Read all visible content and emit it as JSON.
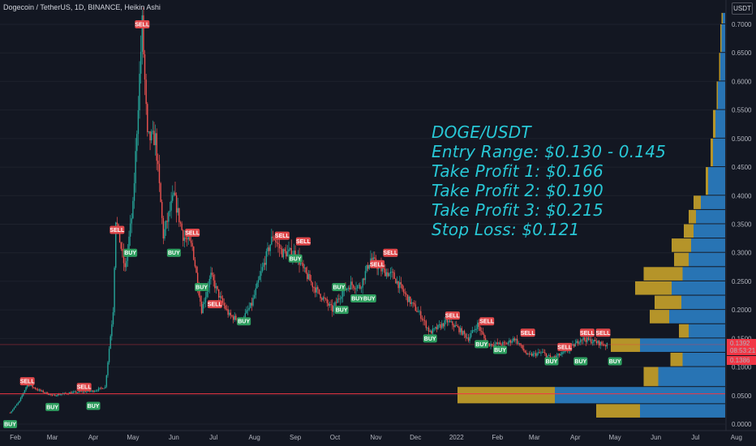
{
  "header": {
    "ticker": "Dogecoin / TetherUS, 1D, BINANCE, Heikin Ashi",
    "unit": "USDT"
  },
  "annotation": {
    "lines": [
      "DOGE/USDT",
      "Entry Range: $0.130 - 0.145",
      "Take Profit 1: $0.166",
      "Take Profit 2: $0.190",
      "Take Profit 3: $0.215",
      "Stop Loss: $0.121"
    ],
    "color": "#28c8d6"
  },
  "colors": {
    "background": "#131722",
    "up": "#26a69a",
    "down": "#ef5350",
    "horizontal_line": "#f23645",
    "volume_profile_blue": "#2b7ec4",
    "volume_profile_gold": "#c8a22a"
  },
  "chart_data": {
    "type": "candlestick",
    "title": "Dogecoin / TetherUS, 1D, BINANCE, Heikin Ashi",
    "ylim": [
      -0.01,
      0.72
    ],
    "y_ticks": [
      "0.7000",
      "0.6500",
      "0.6000",
      "0.5500",
      "0.5000",
      "0.4500",
      "0.4000",
      "0.3500",
      "0.3000",
      "0.2500",
      "0.2000",
      "0.1500",
      "0.1000",
      "0.0500",
      "0.0000"
    ],
    "x_ticks": [
      "Feb",
      "Mar",
      "Apr",
      "May",
      "Jun",
      "Jul",
      "Aug",
      "Sep",
      "Oct",
      "Nov",
      "Dec",
      "2022",
      "Feb",
      "Mar",
      "Apr",
      "May",
      "Jun",
      "Jul",
      "Aug"
    ],
    "price_path": [
      [
        "2021-01-28",
        0.02
      ],
      [
        "2021-02-04",
        0.04
      ],
      [
        "2021-02-10",
        0.07
      ],
      [
        "2021-02-18",
        0.06
      ],
      [
        "2021-03-01",
        0.05
      ],
      [
        "2021-03-15",
        0.055
      ],
      [
        "2021-04-01",
        0.058
      ],
      [
        "2021-04-10",
        0.065
      ],
      [
        "2021-04-16",
        0.2
      ],
      [
        "2021-04-18",
        0.36
      ],
      [
        "2021-04-25",
        0.27
      ],
      [
        "2021-05-01",
        0.38
      ],
      [
        "2021-05-08",
        0.7
      ],
      [
        "2021-05-12",
        0.5
      ],
      [
        "2021-05-18",
        0.5
      ],
      [
        "2021-05-24",
        0.33
      ],
      [
        "2021-06-01",
        0.4
      ],
      [
        "2021-06-08",
        0.33
      ],
      [
        "2021-06-15",
        0.31
      ],
      [
        "2021-06-22",
        0.2
      ],
      [
        "2021-06-29",
        0.26
      ],
      [
        "2021-07-06",
        0.22
      ],
      [
        "2021-07-13",
        0.19
      ],
      [
        "2021-07-22",
        0.18
      ],
      [
        "2021-07-30",
        0.21
      ],
      [
        "2021-08-08",
        0.28
      ],
      [
        "2021-08-15",
        0.33
      ],
      [
        "2021-08-22",
        0.3
      ],
      [
        "2021-09-01",
        0.3
      ],
      [
        "2021-09-07",
        0.27
      ],
      [
        "2021-09-15",
        0.24
      ],
      [
        "2021-09-22",
        0.22
      ],
      [
        "2021-09-29",
        0.2
      ],
      [
        "2021-10-06",
        0.23
      ],
      [
        "2021-10-13",
        0.245
      ],
      [
        "2021-10-20",
        0.24
      ],
      [
        "2021-10-28",
        0.29
      ],
      [
        "2021-11-05",
        0.27
      ],
      [
        "2021-11-14",
        0.26
      ],
      [
        "2021-11-25",
        0.22
      ],
      [
        "2021-12-05",
        0.19
      ],
      [
        "2021-12-12",
        0.16
      ],
      [
        "2021-12-25",
        0.18
      ],
      [
        "2022-01-01",
        0.17
      ],
      [
        "2022-01-10",
        0.15
      ],
      [
        "2022-01-17",
        0.175
      ],
      [
        "2022-01-24",
        0.14
      ],
      [
        "2022-02-07",
        0.14
      ],
      [
        "2022-02-14",
        0.15
      ],
      [
        "2022-02-24",
        0.12
      ],
      [
        "2022-03-07",
        0.125
      ],
      [
        "2022-03-14",
        0.115
      ],
      [
        "2022-03-24",
        0.125
      ],
      [
        "2022-04-01",
        0.14
      ],
      [
        "2022-04-05",
        0.15
      ],
      [
        "2022-04-14",
        0.145
      ],
      [
        "2022-04-25",
        0.138
      ]
    ],
    "signals": [
      {
        "label": "BUY",
        "date": "2021-01-28",
        "price": 0.0
      },
      {
        "label": "SELL",
        "date": "2021-02-10",
        "price": 0.075
      },
      {
        "label": "BUY",
        "date": "2021-03-01",
        "price": 0.03
      },
      {
        "label": "SELL",
        "date": "2021-03-25",
        "price": 0.065
      },
      {
        "label": "BUY",
        "date": "2021-04-01",
        "price": 0.032
      },
      {
        "label": "SELL",
        "date": "2021-05-08",
        "price": 0.7
      },
      {
        "label": "SELL",
        "date": "2021-04-19",
        "price": 0.34
      },
      {
        "label": "BUY",
        "date": "2021-04-29",
        "price": 0.3
      },
      {
        "label": "BUY",
        "date": "2021-06-01",
        "price": 0.3
      },
      {
        "label": "SELL",
        "date": "2021-06-15",
        "price": 0.335
      },
      {
        "label": "BUY",
        "date": "2021-06-22",
        "price": 0.24
      },
      {
        "label": "SELL",
        "date": "2021-07-02",
        "price": 0.21
      },
      {
        "label": "BUY",
        "date": "2021-07-24",
        "price": 0.18
      },
      {
        "label": "SELL",
        "date": "2021-08-22",
        "price": 0.33
      },
      {
        "label": "BUY",
        "date": "2021-09-01",
        "price": 0.29
      },
      {
        "label": "SELL",
        "date": "2021-09-07",
        "price": 0.32
      },
      {
        "label": "BUY",
        "date": "2021-10-04",
        "price": 0.24
      },
      {
        "label": "BUY",
        "date": "2021-10-06",
        "price": 0.2
      },
      {
        "label": "BUY",
        "date": "2021-10-18",
        "price": 0.22
      },
      {
        "label": "BUY",
        "date": "2021-10-27",
        "price": 0.22
      },
      {
        "label": "SELL",
        "date": "2021-11-02",
        "price": 0.28
      },
      {
        "label": "SELL",
        "date": "2021-11-12",
        "price": 0.3
      },
      {
        "label": "BUY",
        "date": "2021-12-12",
        "price": 0.15
      },
      {
        "label": "SELL",
        "date": "2021-12-29",
        "price": 0.19
      },
      {
        "label": "BUY",
        "date": "2022-01-20",
        "price": 0.14
      },
      {
        "label": "SELL",
        "date": "2022-01-24",
        "price": 0.18
      },
      {
        "label": "BUY",
        "date": "2022-02-03",
        "price": 0.13
      },
      {
        "label": "SELL",
        "date": "2022-02-24",
        "price": 0.16
      },
      {
        "label": "BUY",
        "date": "2022-03-14",
        "price": 0.11
      },
      {
        "label": "SELL",
        "date": "2022-03-24",
        "price": 0.135
      },
      {
        "label": "SELL",
        "date": "2022-04-10",
        "price": 0.16
      },
      {
        "label": "BUY",
        "date": "2022-04-05",
        "price": 0.11
      },
      {
        "label": "SELL",
        "date": "2022-04-22",
        "price": 0.16
      },
      {
        "label": "BUY",
        "date": "2022-05-01",
        "price": 0.11
      }
    ],
    "horizontal_lines": [
      {
        "price": 0.053,
        "color": "#f23645"
      },
      {
        "price": 0.1392,
        "color": "#f23645"
      }
    ],
    "price_labels": [
      {
        "value": "0.1392",
        "time": "08:53:21",
        "color": "#f23645"
      },
      {
        "value": "0.1386",
        "color": "#f23645"
      }
    ],
    "volume_profile": [
      {
        "low": 0.0,
        "high": 0.01,
        "blue": 0,
        "gold": 0
      },
      {
        "low": 0.01,
        "high": 0.035,
        "blue": 70,
        "gold": 36
      },
      {
        "low": 0.035,
        "high": 0.065,
        "blue": 140,
        "gold": 80
      },
      {
        "low": 0.065,
        "high": 0.1,
        "blue": 55,
        "gold": 12
      },
      {
        "low": 0.1,
        "high": 0.125,
        "blue": 35,
        "gold": 10
      },
      {
        "low": 0.125,
        "high": 0.15,
        "blue": 70,
        "gold": 24
      },
      {
        "low": 0.15,
        "high": 0.175,
        "blue": 30,
        "gold": 8
      },
      {
        "low": 0.175,
        "high": 0.2,
        "blue": 46,
        "gold": 16
      },
      {
        "low": 0.2,
        "high": 0.225,
        "blue": 36,
        "gold": 22
      },
      {
        "low": 0.225,
        "high": 0.25,
        "blue": 44,
        "gold": 30
      },
      {
        "low": 0.25,
        "high": 0.275,
        "blue": 35,
        "gold": 32
      },
      {
        "low": 0.275,
        "high": 0.3,
        "blue": 30,
        "gold": 12
      },
      {
        "low": 0.3,
        "high": 0.325,
        "blue": 28,
        "gold": 16
      },
      {
        "low": 0.325,
        "high": 0.35,
        "blue": 26,
        "gold": 8
      },
      {
        "low": 0.35,
        "high": 0.375,
        "blue": 24,
        "gold": 6
      },
      {
        "low": 0.375,
        "high": 0.4,
        "blue": 20,
        "gold": 6
      },
      {
        "low": 0.4,
        "high": 0.45,
        "blue": 14,
        "gold": 2
      },
      {
        "low": 0.45,
        "high": 0.5,
        "blue": 10,
        "gold": 2
      },
      {
        "low": 0.5,
        "high": 0.55,
        "blue": 8,
        "gold": 2
      },
      {
        "low": 0.55,
        "high": 0.6,
        "blue": 6,
        "gold": 1
      },
      {
        "low": 0.6,
        "high": 0.65,
        "blue": 4,
        "gold": 1
      },
      {
        "low": 0.65,
        "high": 0.7,
        "blue": 3,
        "gold": 1
      },
      {
        "low": 0.7,
        "high": 0.72,
        "blue": 2,
        "gold": 1
      }
    ]
  }
}
